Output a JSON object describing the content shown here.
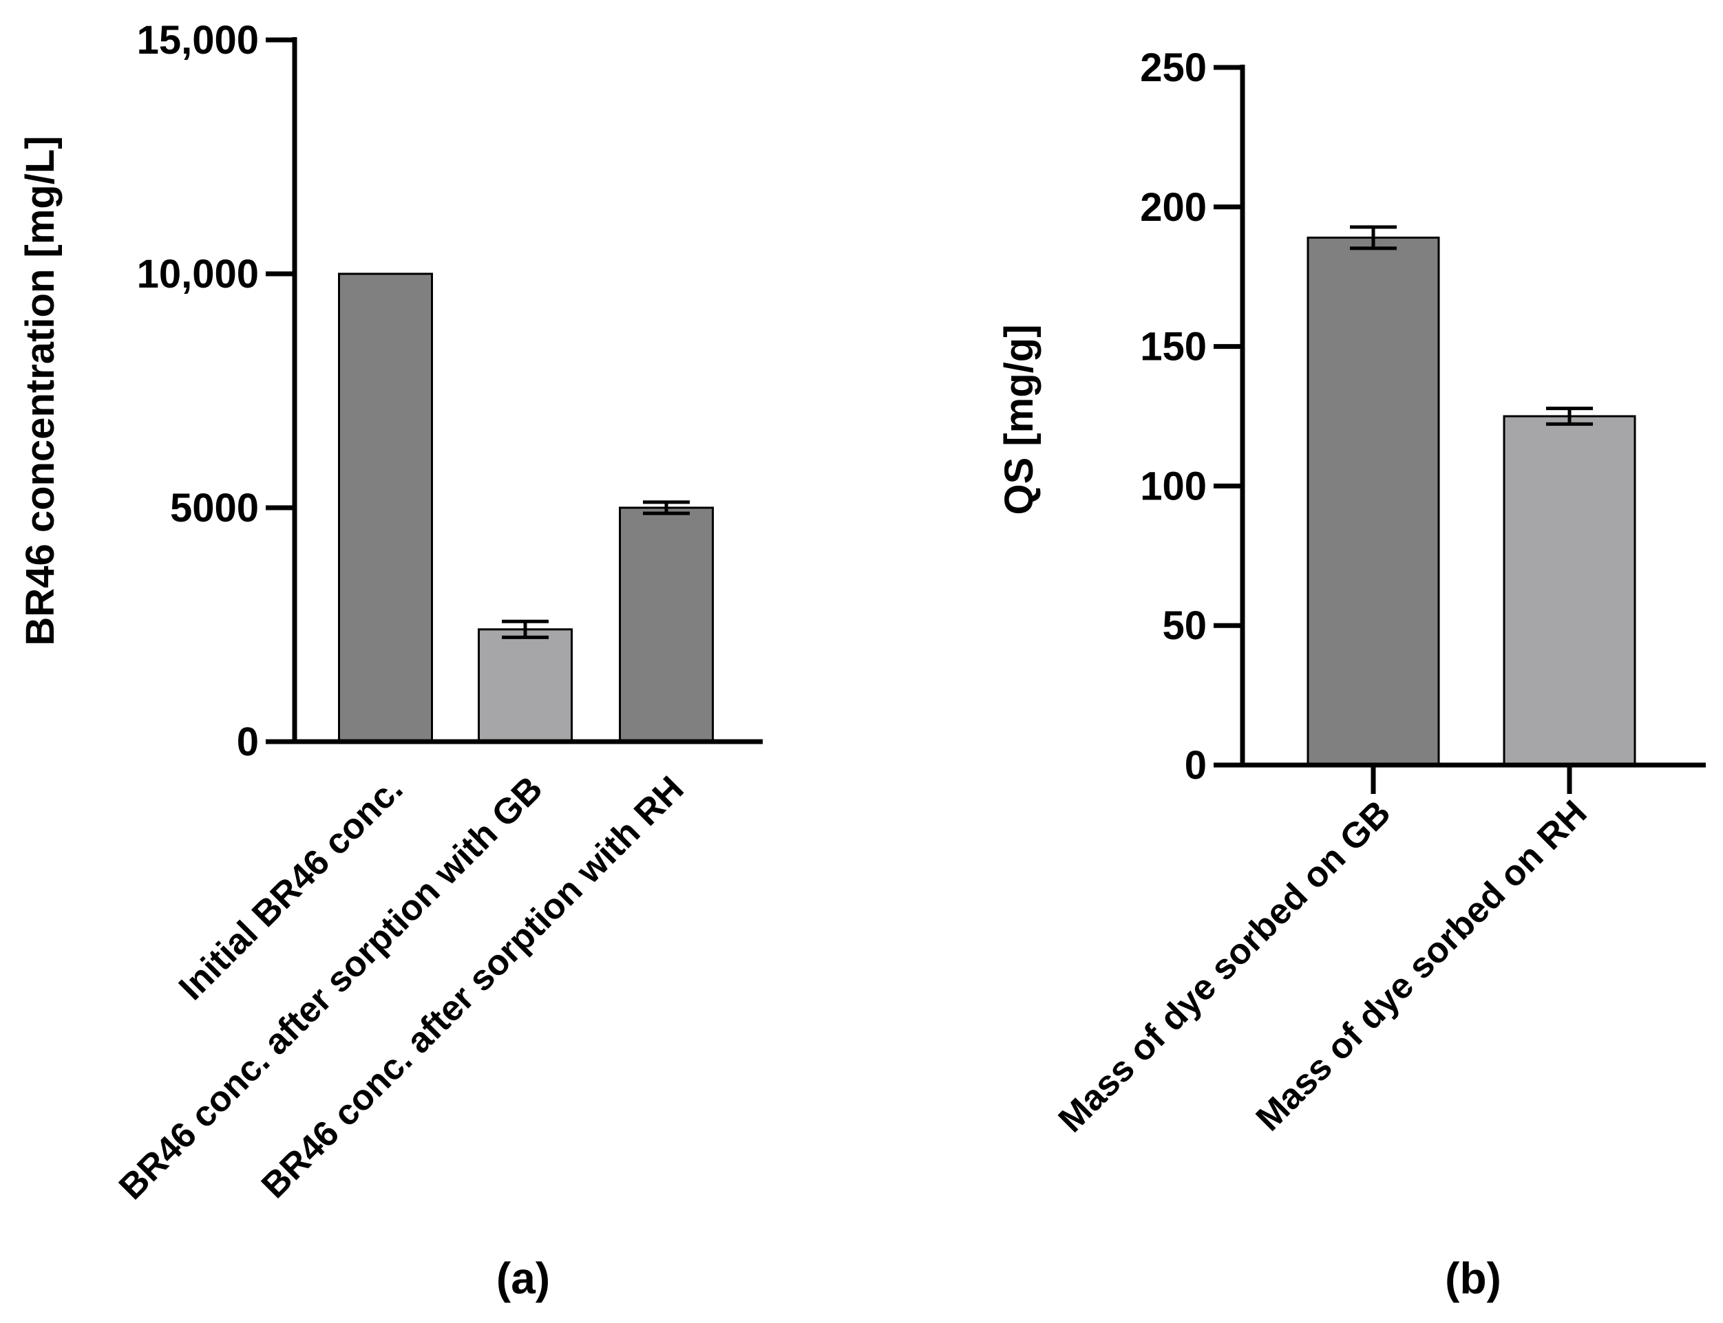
{
  "chart_data": [
    {
      "type": "bar",
      "panel_label": "(a)",
      "categories": [
        "Initial BR46 conc.",
        "BR46 conc. after sorption with GB",
        "BR46 conc. after sorption with RH"
      ],
      "values": [
        10000,
        2400,
        5000
      ],
      "errors": [
        0,
        170,
        120
      ],
      "bar_colors": [
        "#808080",
        "#a6a6a8",
        "#808080"
      ],
      "ylabel": "BR46 concentration [mg/L]",
      "xlabel": "",
      "ylim": [
        0,
        15000
      ],
      "yticks": [
        0,
        5000,
        10000,
        15000
      ],
      "ytick_labels": [
        "0",
        "5000",
        "10,000",
        "15,000"
      ]
    },
    {
      "type": "bar",
      "panel_label": "(b)",
      "categories": [
        "Mass of dye sorbed on GB",
        "Mass of dye sorbed on RH"
      ],
      "values": [
        189,
        125
      ],
      "errors": [
        3.8,
        2.8
      ],
      "bar_colors": [
        "#808080",
        "#a6a6a8"
      ],
      "ylabel": "QS [mg/g]",
      "xlabel": "",
      "ylim": [
        0,
        250
      ],
      "yticks": [
        0,
        50,
        100,
        150,
        200,
        250
      ],
      "ytick_labels": [
        "0",
        "50",
        "100",
        "150",
        "200",
        "250"
      ]
    }
  ]
}
